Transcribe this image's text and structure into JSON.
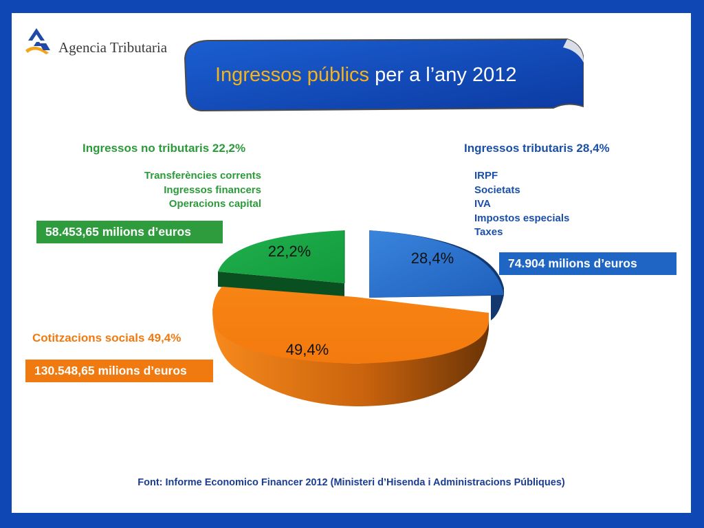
{
  "logo": {
    "text": "Agencia Tributaria"
  },
  "banner": {
    "title_highlight": "Ingressos públics",
    "title_rest": " per a l’any 2012"
  },
  "groups": {
    "non_tax": {
      "heading": "Ingressos no tributaris 22,2%",
      "items": [
        "Transferències corrents",
        "Ingressos financers",
        "Operacions capital"
      ],
      "amount": "58.453,65 milions d’euros",
      "color": "#2e9b3c"
    },
    "tax": {
      "heading": "Ingressos tributaris 28,4%",
      "items": [
        "IRPF",
        "Societats",
        "IVA",
        "Impostos especials",
        "Taxes"
      ],
      "amount": "74.904 milions d’euros",
      "color": "#1f65c4"
    },
    "social": {
      "heading": "Cotitzacions socials 49,4%",
      "amount": "130.548,65 milions d’euros",
      "color": "#f07a10"
    }
  },
  "source": "Font: Informe Economico Financer 2012 (Ministeri d’Hisenda i Administracions Públiques)",
  "chart_data": {
    "type": "pie",
    "title": "Ingressos públics per a l’any 2012",
    "slices": [
      {
        "name": "Ingressos tributaris",
        "value": 28.4,
        "label": "28,4%",
        "amount": 74904,
        "color": "#2b6dc7"
      },
      {
        "name": "Cotitzacions socials",
        "value": 49.4,
        "label": "49,4%",
        "amount": 130548.65,
        "color": "#f58216"
      },
      {
        "name": "Ingressos no tributaris",
        "value": 22.2,
        "label": "22,2%",
        "amount": 58453.65,
        "color": "#21a84a"
      }
    ]
  }
}
